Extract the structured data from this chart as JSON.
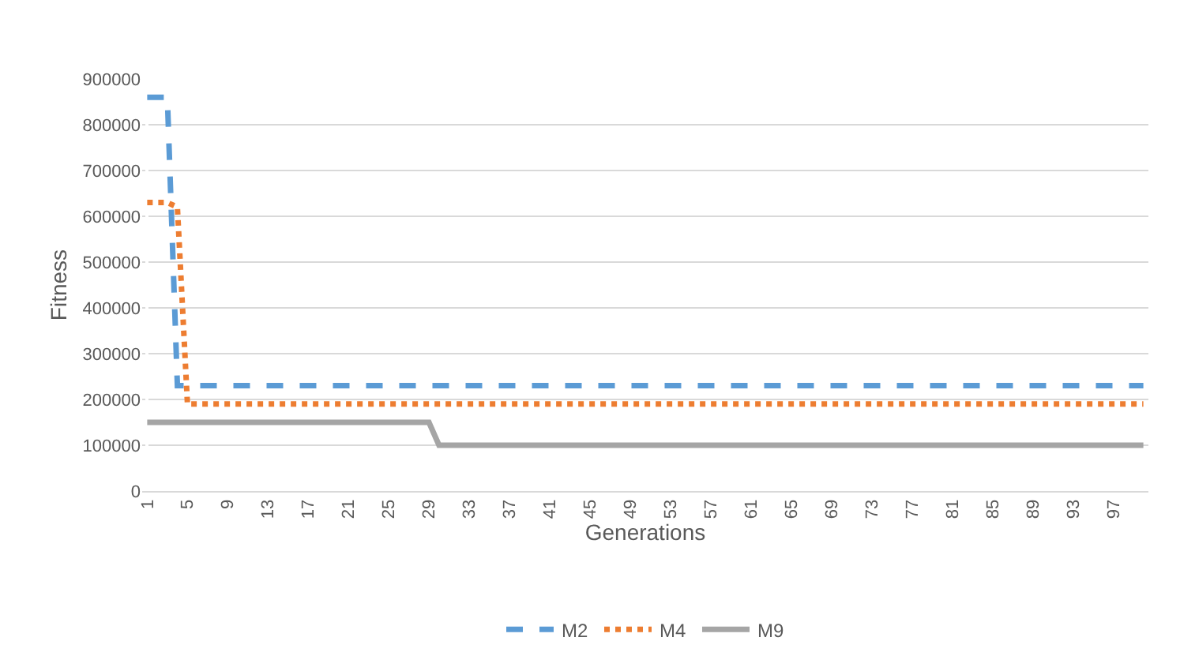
{
  "chart_data": {
    "type": "line",
    "xlabel": "Generations",
    "ylabel": "Fitness",
    "categories": [
      "1",
      null,
      null,
      null,
      "5",
      null,
      null,
      null,
      "9",
      null,
      null,
      null,
      "13",
      null,
      null,
      null,
      "17",
      null,
      null,
      null,
      "21",
      null,
      null,
      null,
      "25",
      null,
      null,
      null,
      "29",
      null,
      null,
      null,
      "33",
      null,
      null,
      null,
      "37",
      null,
      null,
      null,
      "41",
      null,
      null,
      null,
      "45",
      null,
      null,
      null,
      "49",
      null,
      null,
      null,
      "53",
      null,
      null,
      null,
      "57",
      null,
      null,
      null,
      "61",
      null,
      null,
      null,
      "65",
      null,
      null,
      null,
      "69",
      null,
      null,
      null,
      "73",
      null,
      null,
      null,
      "77",
      null,
      null,
      null,
      "81",
      null,
      null,
      null,
      "85",
      null,
      null,
      null,
      "89",
      null,
      null,
      null,
      "93",
      null,
      null,
      null,
      "97",
      null,
      null,
      null
    ],
    "series": [
      {
        "name": "M2",
        "color": "#5b9bd5",
        "line_style": "dashed",
        "values": [
          860000,
          860000,
          860000,
          230000,
          230000,
          230000,
          230000,
          230000,
          230000,
          230000,
          230000,
          230000,
          230000,
          230000,
          230000,
          230000,
          230000,
          230000,
          230000,
          230000,
          230000,
          230000,
          230000,
          230000,
          230000,
          230000,
          230000,
          230000,
          230000,
          230000,
          230000,
          230000,
          230000,
          230000,
          230000,
          230000,
          230000,
          230000,
          230000,
          230000,
          230000,
          230000,
          230000,
          230000,
          230000,
          230000,
          230000,
          230000,
          230000,
          230000,
          230000,
          230000,
          230000,
          230000,
          230000,
          230000,
          230000,
          230000,
          230000,
          230000,
          230000,
          230000,
          230000,
          230000,
          230000,
          230000,
          230000,
          230000,
          230000,
          230000,
          230000,
          230000,
          230000,
          230000,
          230000,
          230000,
          230000,
          230000,
          230000,
          230000,
          230000,
          230000,
          230000,
          230000,
          230000,
          230000,
          230000,
          230000,
          230000,
          230000,
          230000,
          230000,
          230000,
          230000,
          230000,
          230000,
          230000,
          230000,
          230000,
          230000
        ]
      },
      {
        "name": "M4",
        "color": "#ed7d31",
        "line_style": "dotted",
        "values": [
          630000,
          630000,
          630000,
          620000,
          190000,
          190000,
          190000,
          190000,
          190000,
          190000,
          190000,
          190000,
          190000,
          190000,
          190000,
          190000,
          190000,
          190000,
          190000,
          190000,
          190000,
          190000,
          190000,
          190000,
          190000,
          190000,
          190000,
          190000,
          190000,
          190000,
          190000,
          190000,
          190000,
          190000,
          190000,
          190000,
          190000,
          190000,
          190000,
          190000,
          190000,
          190000,
          190000,
          190000,
          190000,
          190000,
          190000,
          190000,
          190000,
          190000,
          190000,
          190000,
          190000,
          190000,
          190000,
          190000,
          190000,
          190000,
          190000,
          190000,
          190000,
          190000,
          190000,
          190000,
          190000,
          190000,
          190000,
          190000,
          190000,
          190000,
          190000,
          190000,
          190000,
          190000,
          190000,
          190000,
          190000,
          190000,
          190000,
          190000,
          190000,
          190000,
          190000,
          190000,
          190000,
          190000,
          190000,
          190000,
          190000,
          190000,
          190000,
          190000,
          190000,
          190000,
          190000,
          190000,
          190000,
          190000,
          190000,
          190000
        ]
      },
      {
        "name": "M9",
        "color": "#a5a5a5",
        "line_style": "solid",
        "values": [
          150000,
          150000,
          150000,
          150000,
          150000,
          150000,
          150000,
          150000,
          150000,
          150000,
          150000,
          150000,
          150000,
          150000,
          150000,
          150000,
          150000,
          150000,
          150000,
          150000,
          150000,
          150000,
          150000,
          150000,
          150000,
          150000,
          150000,
          150000,
          150000,
          100000,
          100000,
          100000,
          100000,
          100000,
          100000,
          100000,
          100000,
          100000,
          100000,
          100000,
          100000,
          100000,
          100000,
          100000,
          100000,
          100000,
          100000,
          100000,
          100000,
          100000,
          100000,
          100000,
          100000,
          100000,
          100000,
          100000,
          100000,
          100000,
          100000,
          100000,
          100000,
          100000,
          100000,
          100000,
          100000,
          100000,
          100000,
          100000,
          100000,
          100000,
          100000,
          100000,
          100000,
          100000,
          100000,
          100000,
          100000,
          100000,
          100000,
          100000,
          100000,
          100000,
          100000,
          100000,
          100000,
          100000,
          100000,
          100000,
          100000,
          100000,
          100000,
          100000,
          100000,
          100000,
          100000,
          100000,
          100000,
          100000,
          100000,
          100000
        ]
      }
    ],
    "ylim": [
      0,
      900000
    ],
    "yticks": [
      0,
      100000,
      200000,
      300000,
      400000,
      500000,
      600000,
      700000,
      800000,
      900000
    ],
    "grid": "y",
    "legend": "bottom",
    "marker": "none"
  }
}
